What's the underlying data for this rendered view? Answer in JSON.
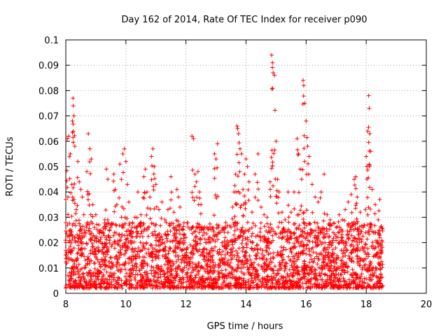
{
  "chart_data": {
    "type": "scatter",
    "title": "Day 162 of 2014, Rate Of TEC Index for receiver p090",
    "xlabel": "GPS time / hours",
    "ylabel": "ROTI / TECUs",
    "xlim": [
      8,
      20
    ],
    "ylim": [
      0,
      0.1
    ],
    "x_ticks": [
      8,
      10,
      12,
      14,
      16,
      18,
      20
    ],
    "x_tick_labels": [
      "8",
      "10",
      "12",
      "14",
      "16",
      "18",
      "20"
    ],
    "y_ticks": [
      0,
      0.01,
      0.02,
      0.03,
      0.04,
      0.05,
      0.06,
      0.07,
      0.08,
      0.09,
      0.1
    ],
    "y_tick_labels": [
      "0",
      "0.01",
      "0.02",
      "0.03",
      "0.04",
      "0.05",
      "0.06",
      "0.07",
      "0.08",
      "0.09",
      "0.1"
    ],
    "grid": true,
    "marker": "+",
    "color": "#ff0000",
    "series": [
      {
        "name": "ROTI",
        "points": [
          [
            8.0,
            0.037
          ],
          [
            8.05,
            0.061
          ],
          [
            8.1,
            0.062
          ],
          [
            8.15,
            0.055
          ],
          [
            8.2,
            0.043
          ],
          [
            8.22,
            0.068
          ],
          [
            8.24,
            0.077
          ],
          [
            8.25,
            0.074
          ],
          [
            8.27,
            0.07
          ],
          [
            8.3,
            0.058
          ],
          [
            8.35,
            0.033
          ],
          [
            8.4,
            0.052
          ],
          [
            8.45,
            0.044
          ],
          [
            8.5,
            0.041
          ],
          [
            8.55,
            0.038
          ],
          [
            8.6,
            0.031
          ],
          [
            8.7,
            0.048
          ],
          [
            8.75,
            0.063
          ],
          [
            8.8,
            0.057
          ],
          [
            8.85,
            0.053
          ],
          [
            8.9,
            0.035
          ],
          [
            9.0,
            0.031
          ],
          [
            9.1,
            0.027
          ],
          [
            9.2,
            0.024
          ],
          [
            9.3,
            0.029
          ],
          [
            9.35,
            0.049
          ],
          [
            9.4,
            0.045
          ],
          [
            9.5,
            0.026
          ],
          [
            9.6,
            0.047
          ],
          [
            9.65,
            0.041
          ],
          [
            9.7,
            0.035
          ],
          [
            9.8,
            0.051
          ],
          [
            9.85,
            0.045
          ],
          [
            9.9,
            0.055
          ],
          [
            9.95,
            0.057
          ],
          [
            10.0,
            0.052
          ],
          [
            10.05,
            0.043
          ],
          [
            10.1,
            0.036
          ],
          [
            10.2,
            0.026
          ],
          [
            10.3,
            0.03
          ],
          [
            10.4,
            0.04
          ],
          [
            10.5,
            0.031
          ],
          [
            10.6,
            0.046
          ],
          [
            10.65,
            0.049
          ],
          [
            10.7,
            0.04
          ],
          [
            10.8,
            0.038
          ],
          [
            10.85,
            0.054
          ],
          [
            10.9,
            0.057
          ],
          [
            10.95,
            0.05
          ],
          [
            11.0,
            0.043
          ],
          [
            11.1,
            0.033
          ],
          [
            11.2,
            0.036
          ],
          [
            11.3,
            0.029
          ],
          [
            11.4,
            0.033
          ],
          [
            11.5,
            0.046
          ],
          [
            11.6,
            0.032
          ],
          [
            11.7,
            0.041
          ],
          [
            11.75,
            0.038
          ],
          [
            11.8,
            0.034
          ],
          [
            11.9,
            0.025
          ],
          [
            12.0,
            0.022
          ],
          [
            12.05,
            0.018
          ],
          [
            12.15,
            0.014
          ],
          [
            12.2,
            0.062
          ],
          [
            12.25,
            0.061
          ],
          [
            12.3,
            0.047
          ],
          [
            12.35,
            0.044
          ],
          [
            12.4,
            0.048
          ],
          [
            12.45,
            0.04
          ],
          [
            12.5,
            0.035
          ],
          [
            12.6,
            0.024
          ],
          [
            12.7,
            0.026
          ],
          [
            12.8,
            0.022
          ],
          [
            12.9,
            0.021
          ],
          [
            12.95,
            0.055
          ],
          [
            13.0,
            0.053
          ],
          [
            13.05,
            0.059
          ],
          [
            13.1,
            0.024
          ],
          [
            13.2,
            0.02
          ],
          [
            13.3,
            0.022
          ],
          [
            13.4,
            0.024
          ],
          [
            13.5,
            0.026
          ],
          [
            13.55,
            0.034
          ],
          [
            13.6,
            0.04
          ],
          [
            13.65,
            0.047
          ],
          [
            13.7,
            0.066
          ],
          [
            13.72,
            0.065
          ],
          [
            13.75,
            0.063
          ],
          [
            13.8,
            0.057
          ],
          [
            13.85,
            0.055
          ],
          [
            13.9,
            0.041
          ],
          [
            13.95,
            0.047
          ],
          [
            14.0,
            0.053
          ],
          [
            14.05,
            0.05
          ],
          [
            14.1,
            0.044
          ],
          [
            14.2,
            0.032
          ],
          [
            14.3,
            0.047
          ],
          [
            14.4,
            0.055
          ],
          [
            14.5,
            0.034
          ],
          [
            14.6,
            0.031
          ],
          [
            14.7,
            0.03
          ],
          [
            14.8,
            0.044
          ],
          [
            14.85,
            0.094
          ],
          [
            14.88,
            0.091
          ],
          [
            14.9,
            0.087
          ],
          [
            14.95,
            0.086
          ],
          [
            15.0,
            0.06
          ],
          [
            15.05,
            0.045
          ],
          [
            15.1,
            0.04
          ],
          [
            15.2,
            0.032
          ],
          [
            15.3,
            0.029
          ],
          [
            15.4,
            0.04
          ],
          [
            15.5,
            0.032
          ],
          [
            15.6,
            0.04
          ],
          [
            15.7,
            0.061
          ],
          [
            15.75,
            0.055
          ],
          [
            15.8,
            0.049
          ],
          [
            15.85,
            0.045
          ],
          [
            15.9,
            0.084
          ],
          [
            15.92,
            0.082
          ],
          [
            15.95,
            0.075
          ],
          [
            16.0,
            0.068
          ],
          [
            16.05,
            0.058
          ],
          [
            16.1,
            0.054
          ],
          [
            16.2,
            0.043
          ],
          [
            16.3,
            0.038
          ],
          [
            16.4,
            0.036
          ],
          [
            16.5,
            0.04
          ],
          [
            16.6,
            0.047
          ],
          [
            16.7,
            0.031
          ],
          [
            16.8,
            0.029
          ],
          [
            16.9,
            0.024
          ],
          [
            17.0,
            0.026
          ],
          [
            17.1,
            0.031
          ],
          [
            17.2,
            0.029
          ],
          [
            17.3,
            0.033
          ],
          [
            17.4,
            0.036
          ],
          [
            17.5,
            0.039
          ],
          [
            17.6,
            0.045
          ],
          [
            17.65,
            0.046
          ],
          [
            17.7,
            0.038
          ],
          [
            17.8,
            0.032
          ],
          [
            17.9,
            0.026
          ],
          [
            18.0,
            0.054
          ],
          [
            18.05,
            0.064
          ],
          [
            18.08,
            0.078
          ],
          [
            18.1,
            0.073
          ],
          [
            18.12,
            0.063
          ],
          [
            18.15,
            0.056
          ],
          [
            18.2,
            0.041
          ],
          [
            18.3,
            0.035
          ],
          [
            18.4,
            0.029
          ],
          [
            18.45,
            0.037
          ],
          [
            18.5,
            0.019
          ]
        ],
        "dense_band": {
          "x_range": [
            8.0,
            18.55
          ],
          "y_range": [
            0.002,
            0.028
          ],
          "note": "dense cloud of points"
        }
      }
    ]
  }
}
